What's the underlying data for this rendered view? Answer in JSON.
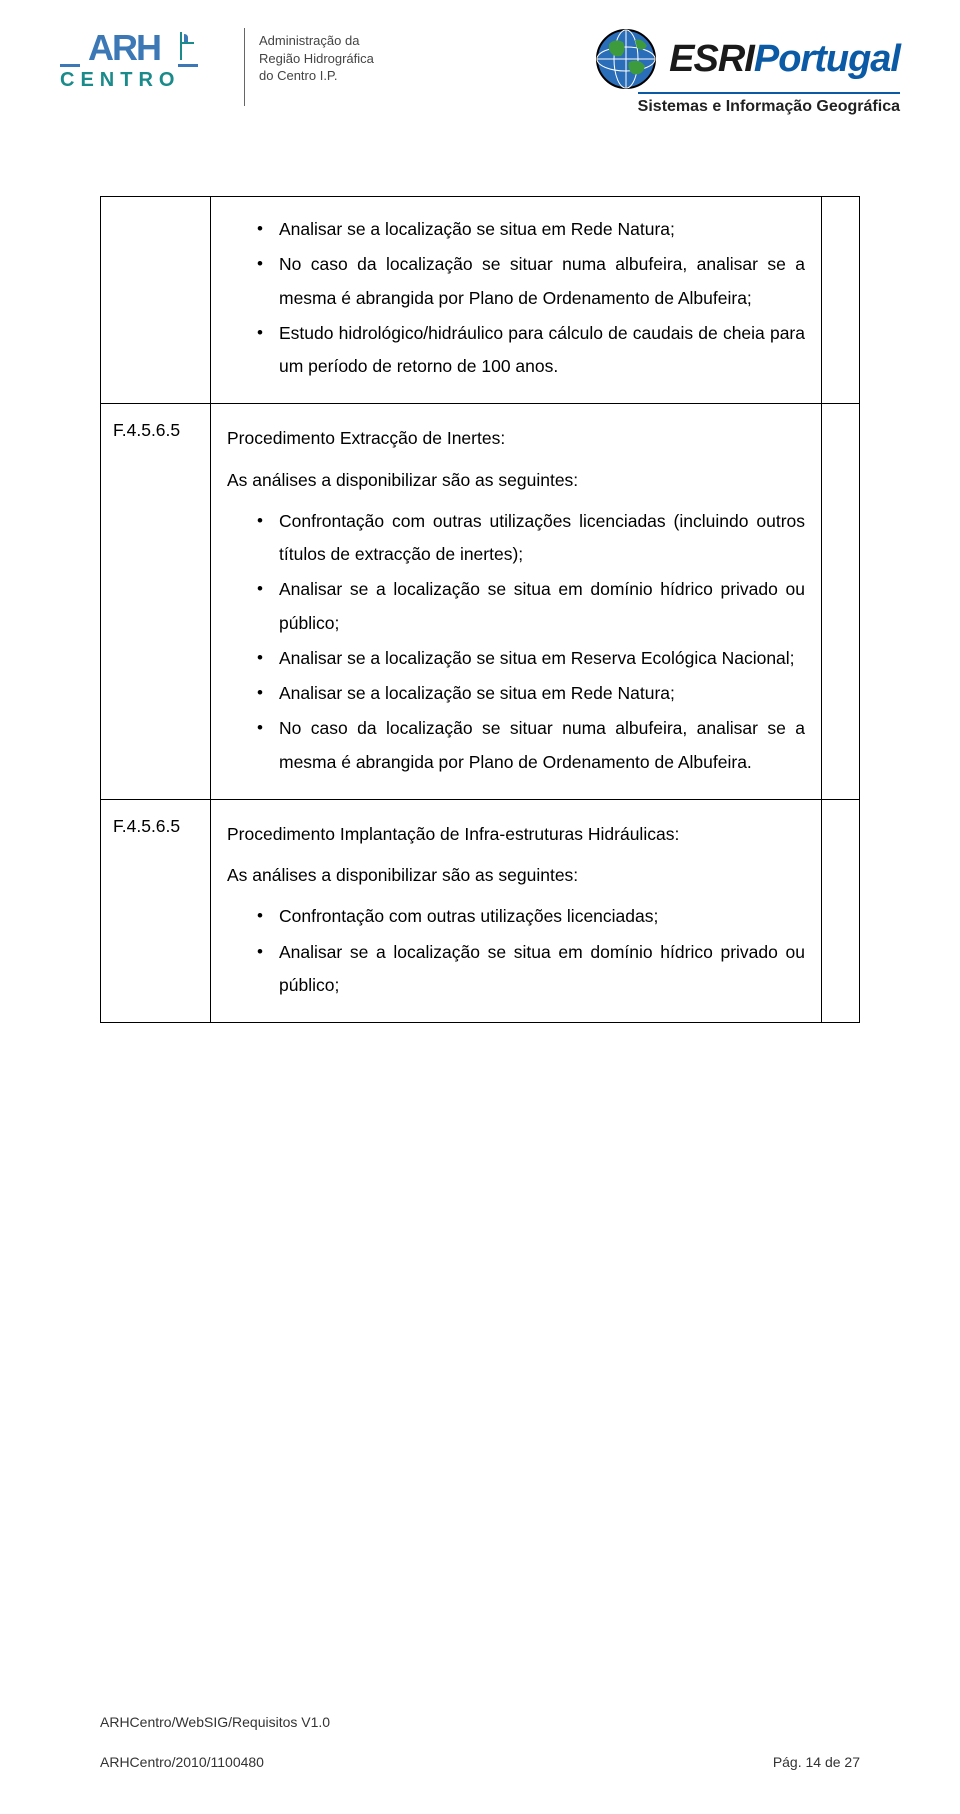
{
  "header": {
    "arh_line1": "Administração da",
    "arh_line2": "Região Hidrográfica",
    "arh_line3": "do Centro I.P.",
    "esri_name1": "ESRI",
    "esri_name2": "Portugal",
    "esri_sub": "Sistemas e Informação Geográfica",
    "colors": {
      "esri_blue": "#0a5aa6",
      "arh_blue": "#3b78b5",
      "arh_teal": "#1a8a8a"
    }
  },
  "rows": [
    {
      "col1": "",
      "bullets": [
        "Analisar se a localização se situa em Rede Natura;",
        "No caso da localização se situar numa albufeira, analisar se a mesma é abrangida por Plano de Ordenamento de Albufeira;",
        "Estudo hidrológico/hidráulico para cálculo de caudais de cheia para um período de retorno de 100 anos."
      ]
    },
    {
      "col1": "F.4.5.6.5",
      "title": "Procedimento Extracção de Inertes:",
      "intro": "As análises a disponibilizar são as seguintes:",
      "bullets": [
        "Confrontação com outras utilizações licenciadas (incluindo outros títulos de extracção de inertes);",
        "Analisar se a localização se situa em domínio hídrico privado ou público;",
        "Analisar se a localização se situa em Reserva Ecológica Nacional;",
        "Analisar se a localização se situa em Rede Natura;",
        "No caso da localização se situar numa albufeira, analisar se a mesma é abrangida por Plano de Ordenamento de Albufeira."
      ]
    },
    {
      "col1": "F.4.5.6.5",
      "title": "Procedimento Implantação de Infra-estruturas Hidráulicas:",
      "intro": "As análises a disponibilizar são as seguintes:",
      "bullets": [
        "Confrontação com outras utilizações licenciadas;",
        "Analisar se a localização se situa em domínio hídrico privado ou público;"
      ]
    }
  ],
  "footer": {
    "line1": "ARHCentro/WebSIG/Requisitos V1.0",
    "left": "ARHCentro/2010/1100480",
    "right": "Pág. 14 de 27"
  }
}
